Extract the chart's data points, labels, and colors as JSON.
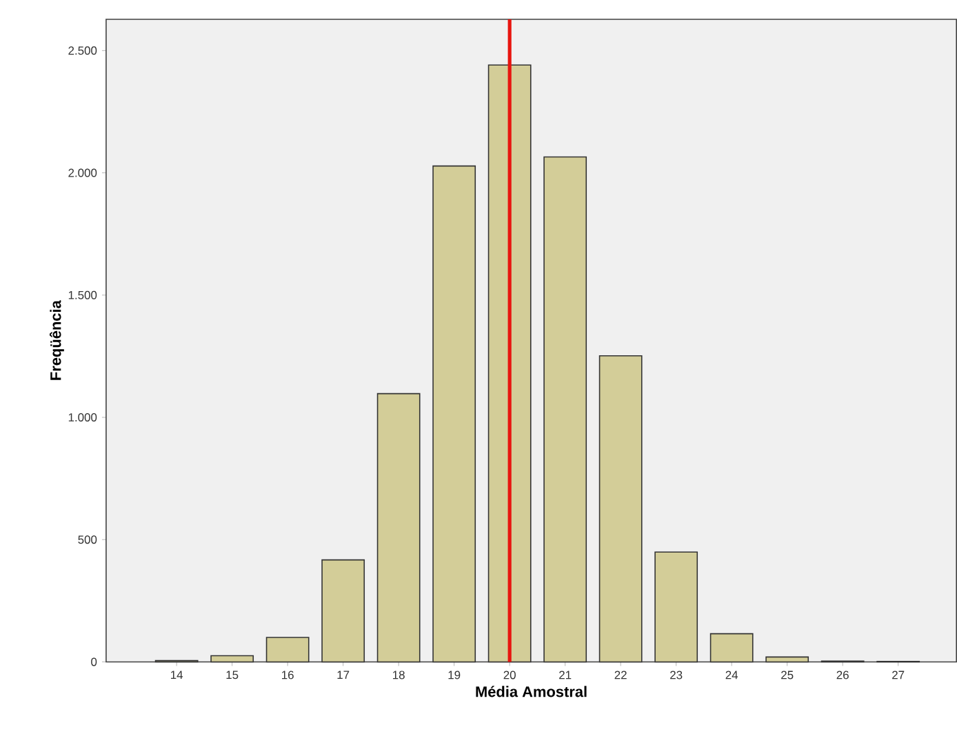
{
  "chart_data": {
    "type": "bar",
    "xlabel": "Média Amostral",
    "ylabel": "Freqüência",
    "x": [
      14,
      15,
      16,
      17,
      18,
      19,
      20,
      21,
      22,
      23,
      24,
      25,
      26,
      27
    ],
    "values": [
      5,
      25,
      100,
      417,
      1097,
      2028,
      2441,
      2065,
      1252,
      449,
      115,
      20,
      3,
      2
    ],
    "color": "#d3cd98",
    "xlim": [
      12.73,
      28.05
    ],
    "xticks": [
      14,
      15,
      16,
      17,
      18,
      19,
      20,
      21,
      22,
      23,
      24,
      25,
      26,
      27
    ],
    "ylim": [
      0,
      2628
    ],
    "yticks": [
      0,
      {
        "value": 500,
        "label": "500"
      },
      {
        "value": 1000,
        "label": "1.000"
      },
      {
        "value": 1500,
        "label": "1.500"
      },
      {
        "value": 2000,
        "label": "2.000"
      },
      {
        "value": 2500,
        "label": "2.500"
      }
    ],
    "ref_lines": [
      {
        "axis": "x",
        "value": 20,
        "color": "#e8150f"
      }
    ],
    "grid": false
  }
}
